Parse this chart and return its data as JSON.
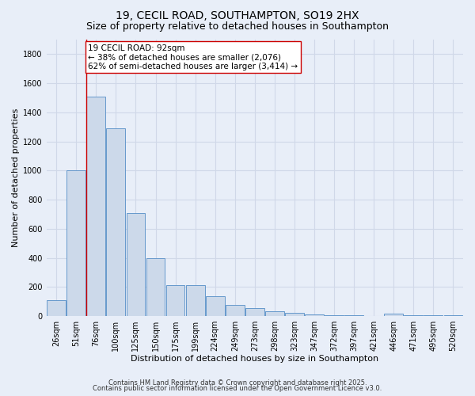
{
  "title_line1": "19, CECIL ROAD, SOUTHAMPTON, SO19 2HX",
  "title_line2": "Size of property relative to detached houses in Southampton",
  "xlabel": "Distribution of detached houses by size in Southampton",
  "ylabel": "Number of detached properties",
  "categories": [
    "26sqm",
    "51sqm",
    "76sqm",
    "100sqm",
    "125sqm",
    "150sqm",
    "175sqm",
    "199sqm",
    "224sqm",
    "249sqm",
    "273sqm",
    "298sqm",
    "323sqm",
    "347sqm",
    "372sqm",
    "397sqm",
    "421sqm",
    "446sqm",
    "471sqm",
    "495sqm",
    "520sqm"
  ],
  "values": [
    110,
    1000,
    1510,
    1290,
    710,
    400,
    215,
    215,
    135,
    75,
    55,
    35,
    20,
    10,
    5,
    5,
    0,
    15,
    5,
    5,
    5
  ],
  "bar_color": "#ccd9ea",
  "bar_edge_color": "#6699cc",
  "background_color": "#e8eef8",
  "grid_color": "#d0d8e8",
  "vline_x": 1.5,
  "vline_color": "#cc0000",
  "annotation_text": "19 CECIL ROAD: 92sqm\n← 38% of detached houses are smaller (2,076)\n62% of semi-detached houses are larger (3,414) →",
  "annotation_box_facecolor": "#ffffff",
  "annotation_box_edgecolor": "#cc0000",
  "ylim": [
    0,
    1900
  ],
  "yticks": [
    0,
    200,
    400,
    600,
    800,
    1000,
    1200,
    1400,
    1600,
    1800
  ],
  "footnote1": "Contains HM Land Registry data © Crown copyright and database right 2025.",
  "footnote2": "Contains public sector information licensed under the Open Government Licence v3.0.",
  "title_fontsize": 10,
  "subtitle_fontsize": 9,
  "axis_label_fontsize": 8,
  "tick_fontsize": 7,
  "annotation_fontsize": 7.5,
  "footnote_fontsize": 6
}
